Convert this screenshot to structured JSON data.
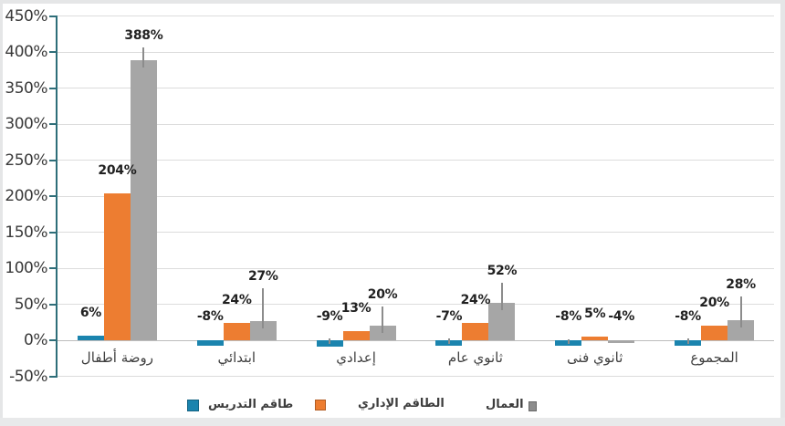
{
  "chart_data": {
    "type": "bar",
    "title": "",
    "xlabel": "",
    "ylabel": "",
    "categories": [
      "روضة أطفال",
      "ابتدائي",
      "إعدادي",
      "ثانوي عام",
      "ثانوي فنى",
      "المجموع"
    ],
    "series": [
      {
        "name": "طاقم التدريس",
        "color": "#1b84ae",
        "values": [
          6,
          -8,
          -9,
          -7,
          -8,
          -8
        ],
        "labels": [
          "6%",
          "-8%",
          "-9%",
          "-7%",
          "-8%",
          "-8%"
        ],
        "err": [
          null,
          null,
          11,
          9,
          9,
          10
        ]
      },
      {
        "name": "الطاقم الإداري",
        "color": "#ed7d31",
        "values": [
          204,
          24,
          13,
          24,
          5,
          20
        ],
        "labels": [
          "204%",
          "24%",
          "13%",
          "24%",
          "5%",
          "20%"
        ],
        "err": [
          null,
          null,
          null,
          null,
          null,
          null
        ]
      },
      {
        "name": "العمال",
        "color": "#a6a6a6",
        "values": [
          388,
          27,
          20,
          52,
          -4,
          28
        ],
        "labels": [
          "388%",
          "27%",
          "20%",
          "52%",
          "-4%",
          "28%"
        ],
        "err": [
          18,
          45,
          27,
          28,
          null,
          33
        ]
      }
    ],
    "y_ticks": [
      "450%",
      "400%",
      "350%",
      "300%",
      "250%",
      "200%",
      "150%",
      "100%",
      "50%",
      "0%",
      "-50%"
    ],
    "ylim": [
      -50,
      450
    ],
    "y_step": 50,
    "grid": true,
    "legend_position": "bottom",
    "legend": [
      {
        "label": "طاقم التدريس",
        "color": "#1b84ae",
        "marker_side": "left"
      },
      {
        "label": "الطاقم الإداري",
        "color": "#ed7d31",
        "marker_side": "left"
      },
      {
        "label": "العمال",
        "color": "#8c8c8c",
        "marker_side": "right"
      }
    ],
    "colors": {
      "axis": "#2e6e79",
      "gridline": "#dcdcdc",
      "zero_line": "#bdbdbd",
      "error_bar": "#8c8c8c"
    }
  }
}
